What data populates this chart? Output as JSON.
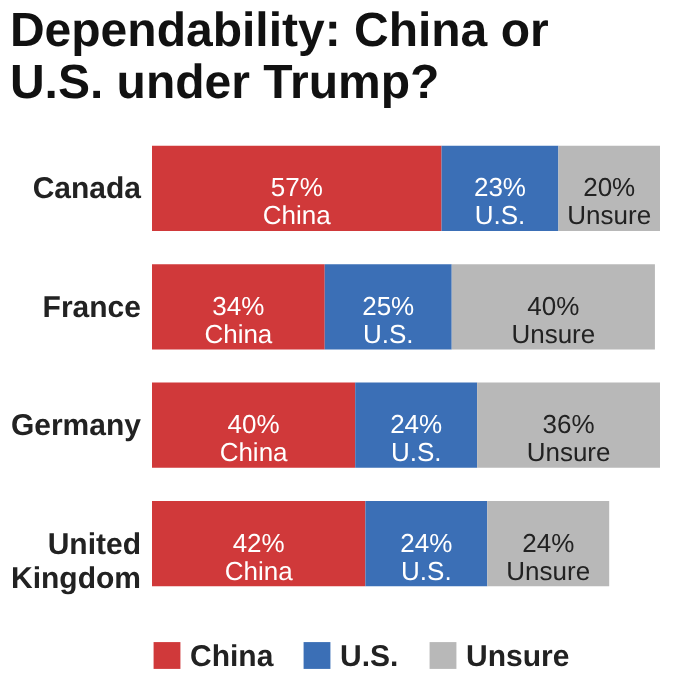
{
  "chart_data": {
    "type": "bar",
    "orientation": "horizontal",
    "stacked": true,
    "title": "Dependability: China or U.S. under Trump?",
    "categories": [
      "Canada",
      "France",
      "Germany",
      "United Kingdom"
    ],
    "series": [
      {
        "name": "China",
        "color": "#d0393a",
        "values": [
          57,
          34,
          40,
          42
        ],
        "value_labels": [
          "57%",
          "34%",
          "40%",
          "42%"
        ]
      },
      {
        "name": "U.S.",
        "color": "#3b6fb6",
        "values": [
          23,
          25,
          24,
          24
        ],
        "value_labels": [
          "23%",
          "25%",
          "24%",
          "24%"
        ]
      },
      {
        "name": "Unsure",
        "color": "#b8b8b8",
        "values": [
          20,
          40,
          36,
          24
        ],
        "value_labels": [
          "20%",
          "40%",
          "36%",
          "24%"
        ]
      }
    ],
    "legend": "bottom",
    "grid": false
  }
}
